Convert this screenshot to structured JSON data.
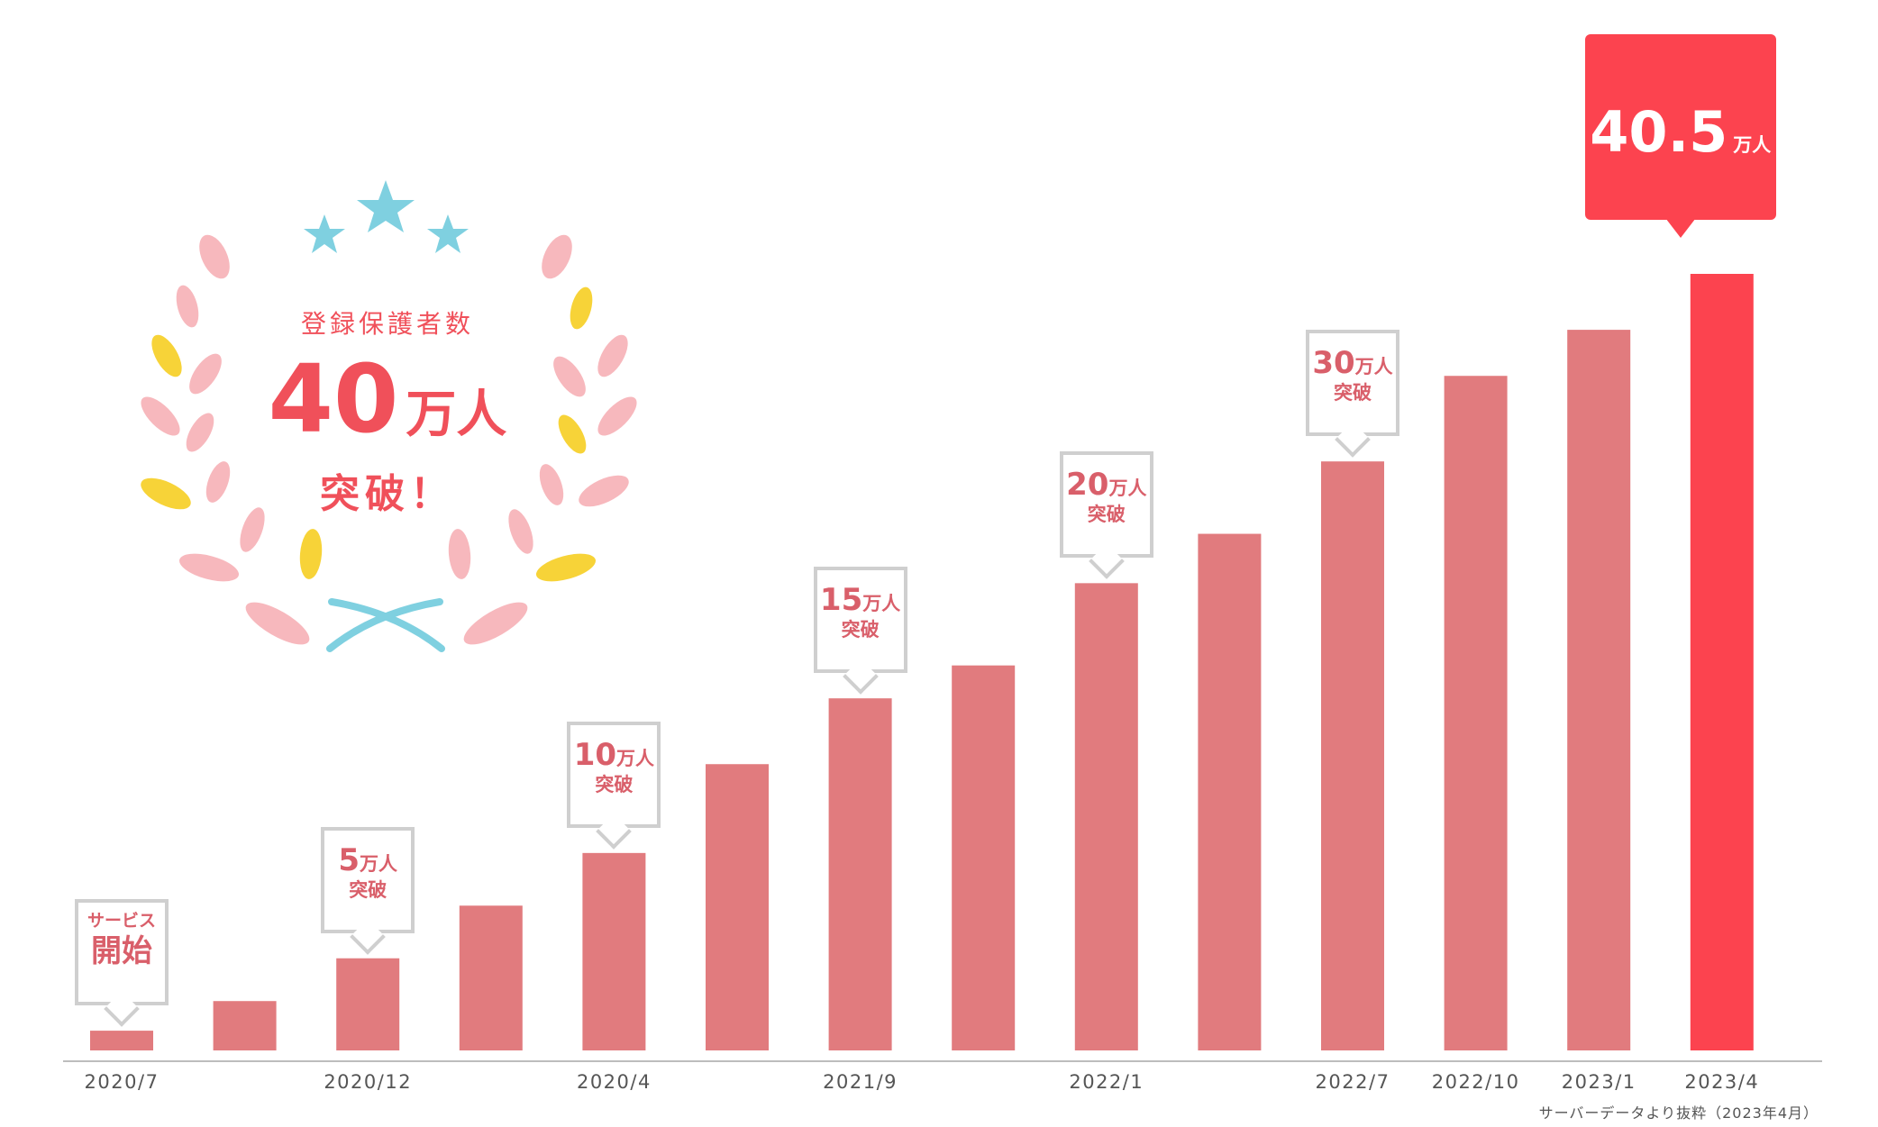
{
  "chart_data": {
    "type": "bar",
    "categories": [
      "2020/7",
      "",
      "2020/12",
      "",
      "2020/4",
      "",
      "2021/9",
      "",
      "2022/1",
      "",
      "2022/7",
      "2022/10",
      "2023/1",
      "2023/4"
    ],
    "values": [
      0.6,
      1.5,
      2.8,
      4.4,
      6.0,
      8.7,
      10.7,
      11.7,
      14.2,
      15.7,
      17.9,
      20.5,
      21.9,
      23.6
    ],
    "highlight_index": 13,
    "colors": {
      "bar": "#e17b7e",
      "highlight": "#fc434f",
      "badge_border": "#cfcfcf",
      "badge_text": "#d95f6a"
    },
    "source_note": "サーバーデータより抜粋（2023年4月）",
    "milestones": [
      {
        "index": 0,
        "line1": "サービス",
        "line2": "開始"
      },
      {
        "index": 2,
        "num": "5",
        "unit": "万人",
        "label": "突破"
      },
      {
        "index": 4,
        "num": "10",
        "unit": "万人",
        "label": "突破"
      },
      {
        "index": 6,
        "num": "15",
        "unit": "万人",
        "label": "突破"
      },
      {
        "index": 8,
        "num": "20",
        "unit": "万人",
        "label": "突破"
      },
      {
        "index": 10,
        "num": "30",
        "unit": "万人",
        "label": "突破"
      }
    ],
    "final_label": {
      "index": 13,
      "num": "40.5",
      "unit": "万人"
    }
  },
  "emblem": {
    "heading": "登録保護者数",
    "number": "40",
    "unit": "万人",
    "suffix": "突破！",
    "colors": {
      "text": "#f0505a",
      "petal_pink": "#f7b8bd",
      "petal_yellow": "#f7d338",
      "star": "#7fd0e0",
      "ribbon": "#7fd0e0"
    }
  }
}
